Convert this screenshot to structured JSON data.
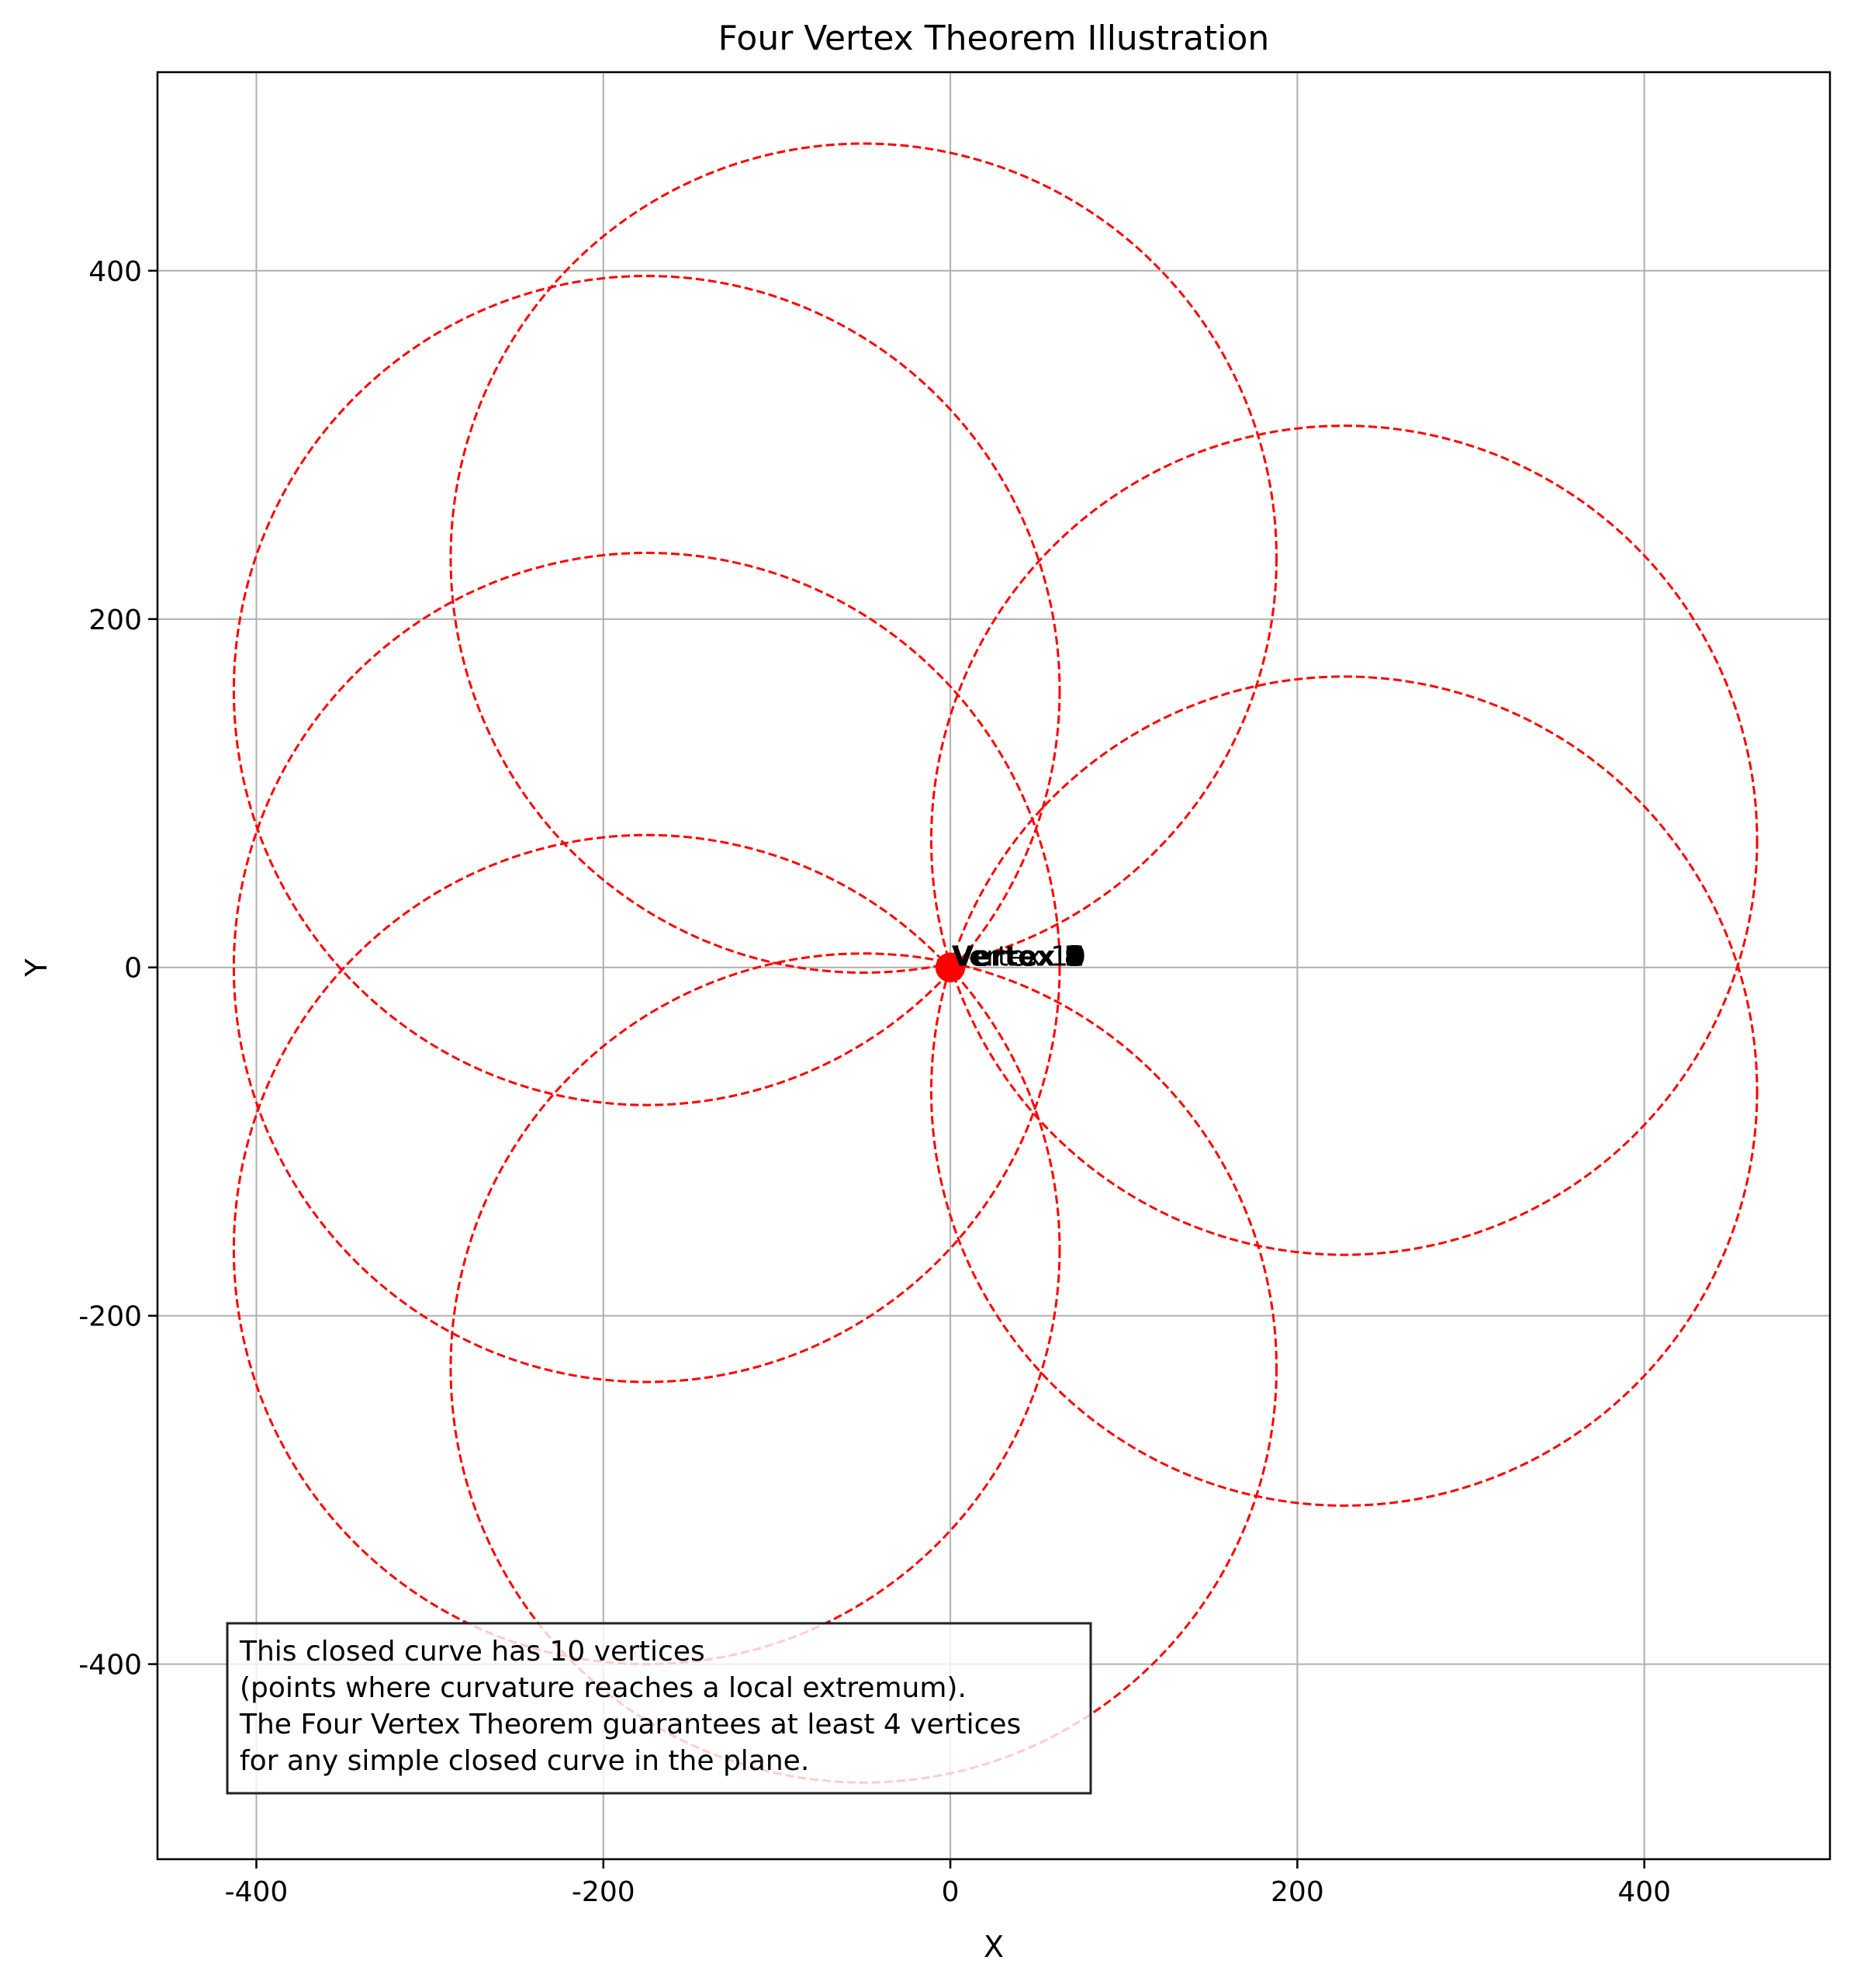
{
  "chart_data": {
    "type": "scatter",
    "title": "Four Vertex Theorem Illustration",
    "xlabel": "X",
    "ylabel": "Y",
    "xlim": [
      -457,
      507
    ],
    "ylim": [
      -512,
      514
    ],
    "xticks": [
      -400,
      -200,
      0,
      200,
      400
    ],
    "yticks": [
      -400,
      -200,
      0,
      200,
      400
    ],
    "xtick_labels": [
      "-400",
      "-200",
      "0",
      "200",
      "400"
    ],
    "ytick_labels": [
      "-400",
      "-200",
      "0",
      "200",
      "400"
    ],
    "grid": true,
    "circle_color": "#ff0000",
    "circle_style": "dashed",
    "circles": [
      {
        "cx": -50,
        "cy": 235,
        "r": 238
      },
      {
        "cx": -175,
        "cy": 159,
        "r": 238
      },
      {
        "cx": 227,
        "cy": 73,
        "r": 238
      },
      {
        "cx": 227,
        "cy": -71,
        "r": 238
      },
      {
        "cx": -175,
        "cy": 0,
        "r": 238
      },
      {
        "cx": -50,
        "cy": -230,
        "r": 238
      },
      {
        "cx": -175,
        "cy": -162,
        "r": 238
      }
    ],
    "point_color": "#ff0000",
    "vertices": [
      {
        "x": 0,
        "y": 0,
        "label": "Vertex 1"
      },
      {
        "x": 0,
        "y": 0,
        "label": "Vertex 2"
      },
      {
        "x": 0,
        "y": 0,
        "label": "Vertex 3"
      },
      {
        "x": 0,
        "y": 0,
        "label": "Vertex 4"
      },
      {
        "x": 0,
        "y": 0,
        "label": "Vertex 5"
      },
      {
        "x": 0,
        "y": 0,
        "label": "Vertex 6"
      },
      {
        "x": 0,
        "y": 0,
        "label": "Vertex 7"
      },
      {
        "x": 0,
        "y": 0,
        "label": "Vertex 8"
      },
      {
        "x": 0,
        "y": 0,
        "label": "Vertex 9"
      },
      {
        "x": 0,
        "y": 0,
        "label": "Vertex 10"
      }
    ],
    "annotation_lines": [
      "This closed curve has 10 vertices",
      "(points where curvature reaches a local extremum).",
      "The Four Vertex Theorem guarantees at least 4 vertices",
      "for any simple closed curve in the plane."
    ]
  }
}
